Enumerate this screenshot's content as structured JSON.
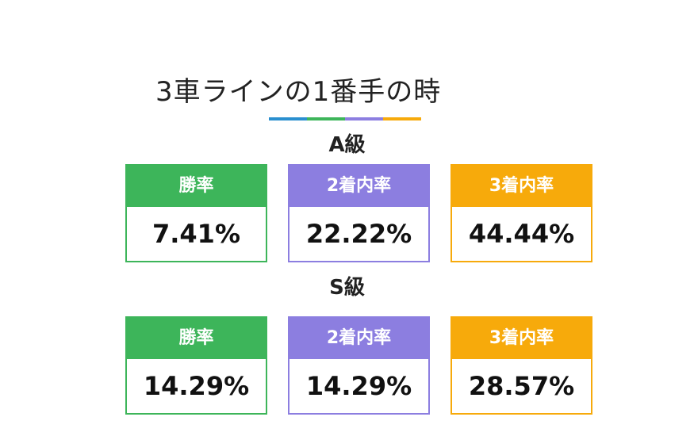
{
  "title": "3車ラインの1番手の時",
  "colors": {
    "green": "#3db55a",
    "purple": "#8c7ee0",
    "orange": "#f7aa0b",
    "blue": "#2a8fcf"
  },
  "underline_colors": [
    "#2a8fcf",
    "#3db55a",
    "#8c7ee0",
    "#f7aa0b"
  ],
  "sections": [
    {
      "grade": "A級",
      "cards": [
        {
          "label": "勝率",
          "value": "7.41%"
        },
        {
          "label": "2着内率",
          "value": "22.22%"
        },
        {
          "label": "3着内率",
          "value": "44.44%"
        }
      ]
    },
    {
      "grade": "S級",
      "cards": [
        {
          "label": "勝率",
          "value": "14.29%"
        },
        {
          "label": "2着内率",
          "value": "14.29%"
        },
        {
          "label": "3着内率",
          "value": "28.57%"
        }
      ]
    }
  ]
}
